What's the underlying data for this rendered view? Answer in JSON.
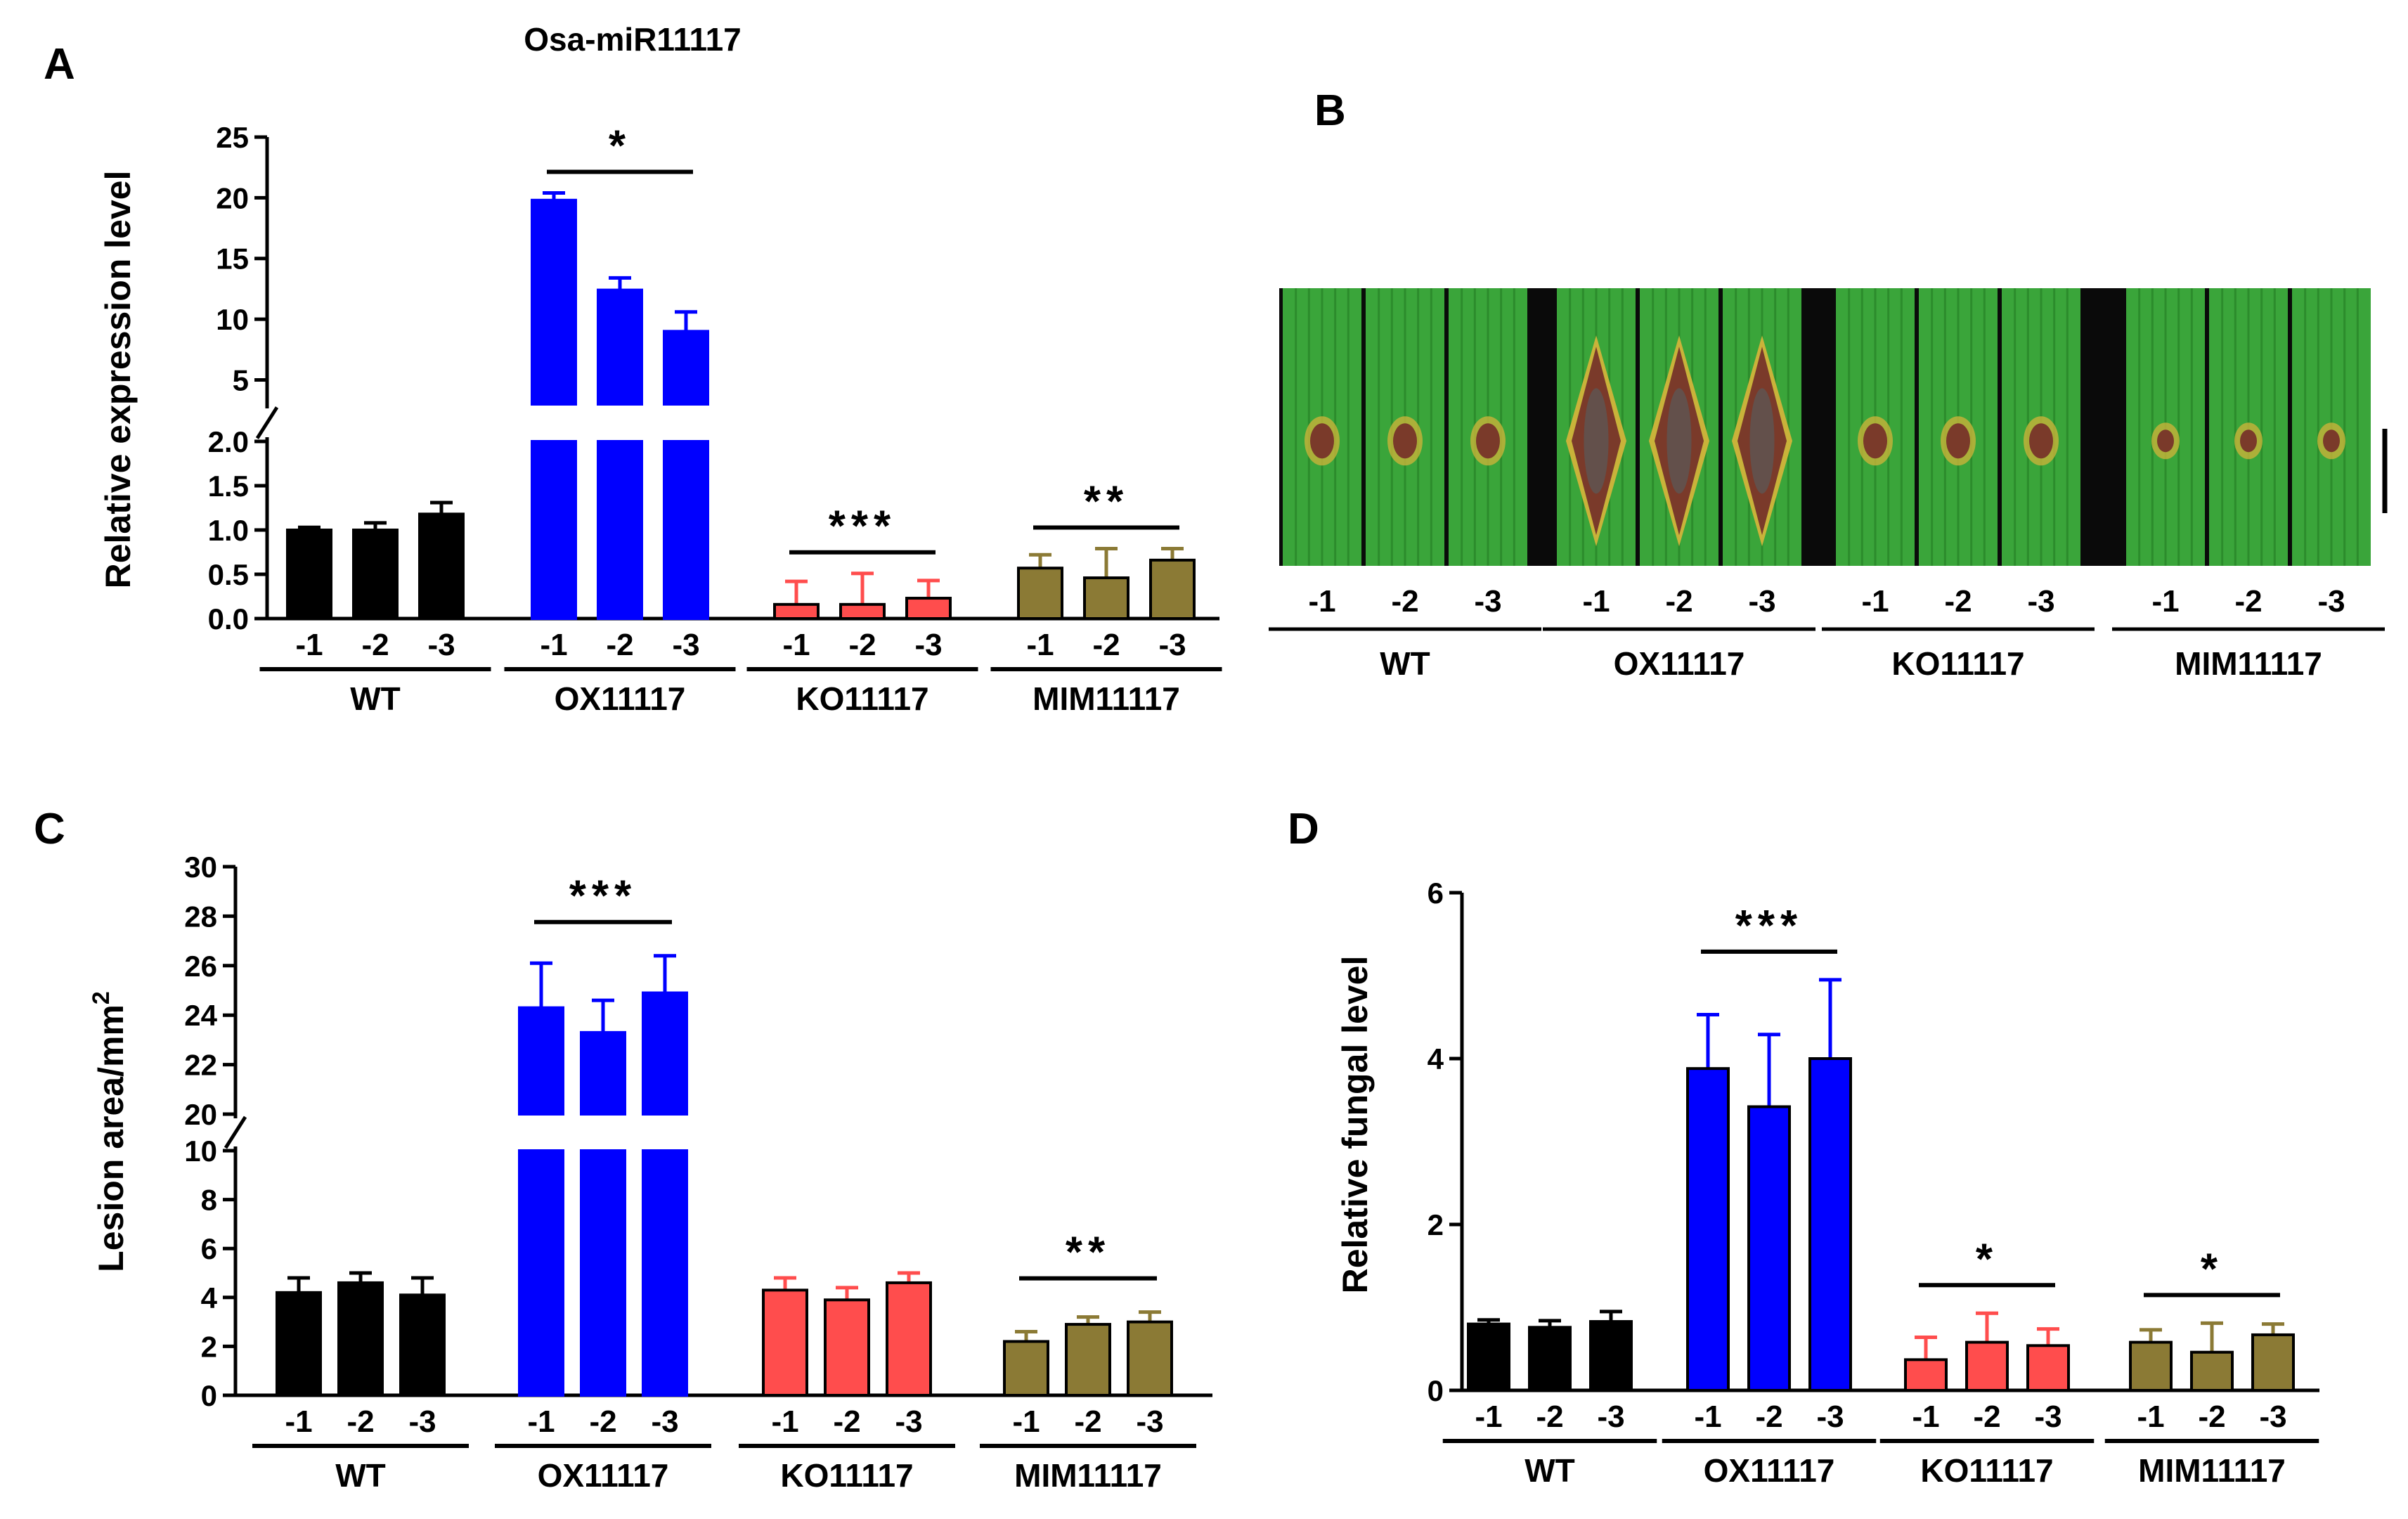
{
  "colors": {
    "wt": "#000000",
    "ox": "#0000ff",
    "ko": "#ff4d4d",
    "mim": "#8b7a35",
    "leaf": "#3aa53a",
    "lesion": "#7a3a2a",
    "halo": "#c9b33a"
  },
  "panel_labels": {
    "a": "A",
    "b": "B",
    "c": "C",
    "d": "D"
  },
  "category_labels": [
    "-1",
    "-2",
    "-3"
  ],
  "panel_b": {
    "groups": [
      {
        "name": "WT",
        "lines": [
          "-1",
          "-2",
          "-3"
        ],
        "lesion_size": "small"
      },
      {
        "name": "OX11117",
        "lines": [
          "-1",
          "-2",
          "-3"
        ],
        "lesion_size": "large"
      },
      {
        "name": "KO11117",
        "lines": [
          "-1",
          "-2",
          "-3"
        ],
        "lesion_size": "small"
      },
      {
        "name": "MIM11117",
        "lines": [
          "-1",
          "-2",
          "-3"
        ],
        "lesion_size": "tiny"
      }
    ]
  },
  "chart_data": [
    {
      "id": "A",
      "type": "bar",
      "title": "Osa-miR11117",
      "ylabel": "Relative expression level",
      "broken_axis": true,
      "lower_range": [
        0,
        2.0
      ],
      "upper_range": [
        3.0,
        25
      ],
      "lower_ticks": [
        "0.0",
        "0.5",
        "1.0",
        "1.5",
        "2.0"
      ],
      "upper_ticks": [
        "5",
        "10",
        "15",
        "20",
        "25"
      ],
      "groups": [
        {
          "name": "WT",
          "values": [
            1.0,
            1.0,
            1.18
          ],
          "errors": [
            0.03,
            0.08,
            0.13
          ],
          "sig": ""
        },
        {
          "name": "OX11117",
          "values": [
            19.8,
            12.4,
            9.0
          ],
          "errors": [
            0.6,
            1.0,
            1.6
          ],
          "sig": "*"
        },
        {
          "name": "KO11117",
          "values": [
            0.16,
            0.16,
            0.23
          ],
          "errors": [
            0.26,
            0.35,
            0.2
          ],
          "sig": "***"
        },
        {
          "name": "MIM11117",
          "values": [
            0.57,
            0.46,
            0.66
          ],
          "errors": [
            0.15,
            0.33,
            0.13
          ],
          "sig": "**"
        }
      ]
    },
    {
      "id": "C",
      "type": "bar",
      "title": "",
      "ylabel": "Lesion area/mm",
      "ylabel_sup": "2",
      "broken_axis": true,
      "lower_range": [
        0,
        10
      ],
      "upper_range": [
        20,
        30
      ],
      "lower_ticks": [
        "0",
        "2",
        "4",
        "6",
        "8",
        "10"
      ],
      "upper_ticks": [
        "20",
        "22",
        "24",
        "26",
        "28",
        "30"
      ],
      "groups": [
        {
          "name": "WT",
          "values": [
            4.2,
            4.6,
            4.1
          ],
          "errors": [
            0.6,
            0.4,
            0.7
          ],
          "sig": ""
        },
        {
          "name": "OX11117",
          "values": [
            24.3,
            23.3,
            24.9
          ],
          "errors": [
            1.8,
            1.3,
            1.5
          ],
          "sig": "***"
        },
        {
          "name": "KO11117",
          "values": [
            4.3,
            3.9,
            4.6
          ],
          "errors": [
            0.5,
            0.5,
            0.4
          ],
          "sig": ""
        },
        {
          "name": "MIM11117",
          "values": [
            2.2,
            2.9,
            3.0
          ],
          "errors": [
            0.4,
            0.3,
            0.4
          ],
          "sig": "**"
        }
      ]
    },
    {
      "id": "D",
      "type": "bar",
      "title": "",
      "ylabel": "Relative fungal level",
      "broken_axis": false,
      "ylim": [
        0,
        6
      ],
      "ticks": [
        "0",
        "2",
        "4",
        "6"
      ],
      "groups": [
        {
          "name": "WT",
          "values": [
            0.8,
            0.76,
            0.83
          ],
          "errors": [
            0.05,
            0.08,
            0.12
          ],
          "sig": ""
        },
        {
          "name": "OX11117",
          "values": [
            3.88,
            3.42,
            4.0
          ],
          "errors": [
            0.65,
            0.87,
            0.95
          ],
          "sig": "***"
        },
        {
          "name": "KO11117",
          "values": [
            0.37,
            0.58,
            0.54
          ],
          "errors": [
            0.27,
            0.35,
            0.2
          ],
          "sig": "*"
        },
        {
          "name": "MIM11117",
          "values": [
            0.58,
            0.46,
            0.67
          ],
          "errors": [
            0.15,
            0.35,
            0.13
          ],
          "sig": "*"
        }
      ]
    }
  ]
}
